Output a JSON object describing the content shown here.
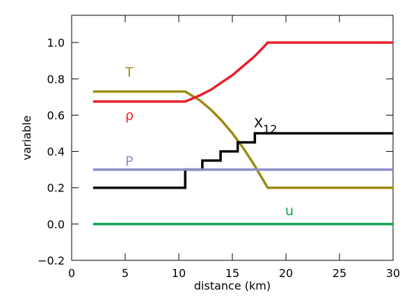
{
  "chart_data": {
    "type": "line",
    "xlabel": "distance (km)",
    "ylabel": "variable",
    "xlim": [
      0,
      30
    ],
    "xticks": [
      0,
      5,
      10,
      15,
      20,
      25,
      30
    ],
    "ylim": [
      -0.2,
      1.15
    ],
    "yticks": [
      {
        "value": -0.2,
        "label": "−0.2"
      },
      {
        "value": 0,
        "label": "0.0"
      },
      0.2,
      0.4,
      0.6,
      0.8,
      {
        "value": 1,
        "label": "1.0"
      }
    ],
    "series": [
      {
        "name": "T",
        "color": "#9b8c12",
        "x": [
          2,
          10.6,
          12,
          13,
          14,
          15,
          16,
          17,
          18,
          18.3,
          30
        ],
        "values": [
          0.73,
          0.73,
          0.68,
          0.63,
          0.57,
          0.5,
          0.42,
          0.33,
          0.23,
          0.2,
          0.2
        ]
      },
      {
        "name": "ρ",
        "color": "#e8202a",
        "x": [
          2,
          10.6,
          12,
          13,
          14,
          15,
          16,
          17,
          18,
          18.3,
          30
        ],
        "values": [
          0.675,
          0.675,
          0.71,
          0.74,
          0.78,
          0.82,
          0.87,
          0.92,
          0.98,
          1.0,
          1.0
        ]
      },
      {
        "name": "X",
        "subscript": "12",
        "color": "#000000",
        "x": [
          2,
          10.6,
          10.6,
          12.2,
          12.2,
          13.9,
          13.9,
          15.5,
          15.5,
          17.1,
          17.1,
          30
        ],
        "values": [
          0.2,
          0.2,
          0.3,
          0.3,
          0.35,
          0.35,
          0.4,
          0.4,
          0.45,
          0.45,
          0.5,
          0.5
        ]
      },
      {
        "name": "P",
        "color": "#8c8cc8",
        "x": [
          2,
          30
        ],
        "values": [
          0.3,
          0.3
        ]
      },
      {
        "name": "u",
        "color": "#10a050",
        "x": [
          2,
          30
        ],
        "values": [
          0,
          0
        ]
      }
    ]
  }
}
